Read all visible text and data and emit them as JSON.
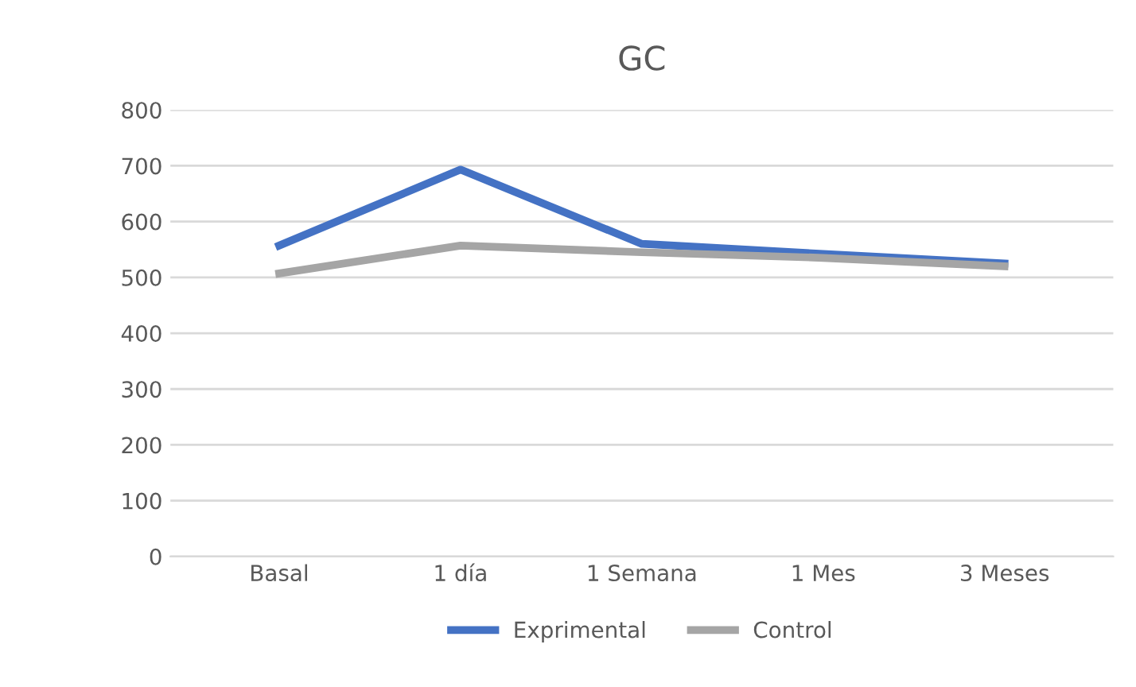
{
  "chart_data": {
    "type": "line",
    "title": "GC",
    "categories": [
      "Basal",
      "1 día",
      "1 Semana",
      "1 Mes",
      "3 Meses"
    ],
    "series": [
      {
        "name": "Exprimental",
        "color": "#4472c4",
        "values": [
          557,
          693,
          560,
          542,
          525
        ]
      },
      {
        "name": "Control",
        "color": "#a5a5a5",
        "values": [
          507,
          557,
          545,
          535,
          520
        ]
      }
    ],
    "ylim": [
      0,
      800
    ],
    "yticks": [
      0,
      100,
      200,
      300,
      400,
      500,
      600,
      700,
      800
    ],
    "grid": "y",
    "legend": "bottom",
    "marker": "none",
    "line_style": "solid"
  }
}
